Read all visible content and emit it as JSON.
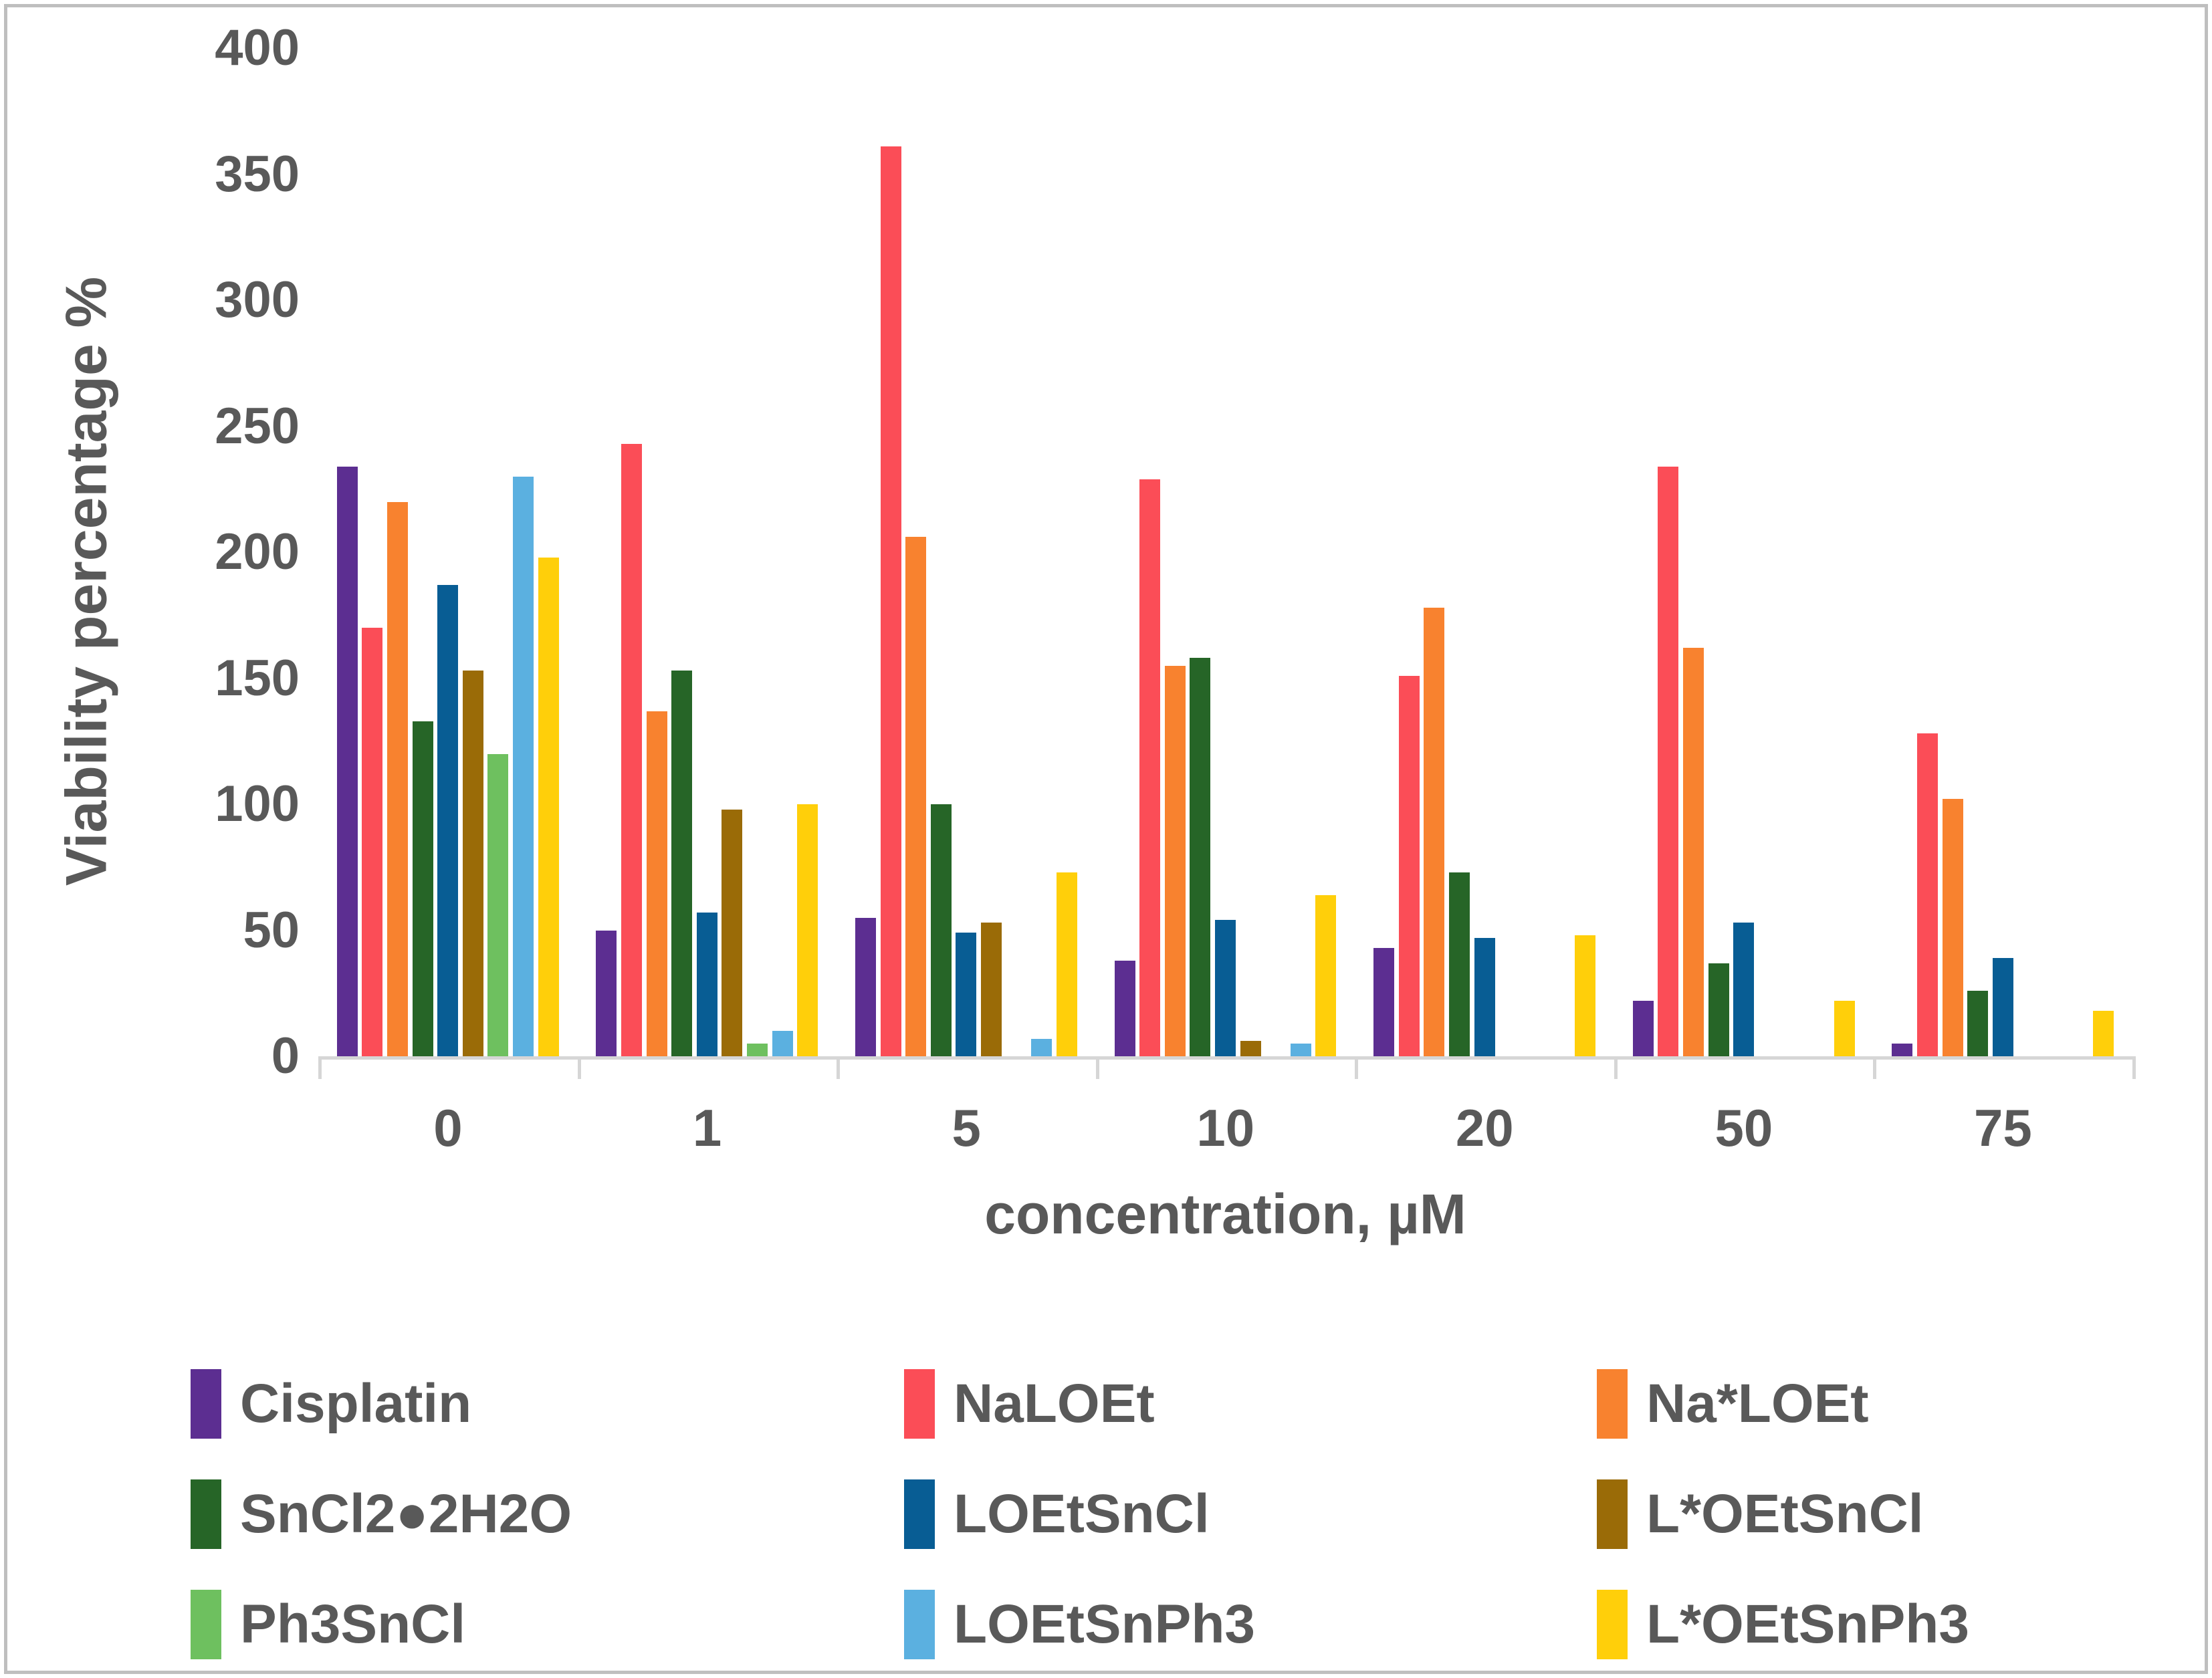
{
  "chart_data": {
    "type": "bar",
    "title": "",
    "xlabel": "concentration, µM",
    "ylabel": "Viability percentage  %",
    "categories": [
      "0",
      "1",
      "5",
      "10",
      "20",
      "50",
      "75"
    ],
    "ylim": [
      0,
      400
    ],
    "ytick_step": 50,
    "yticks": [
      "0",
      "50",
      "100",
      "150",
      "200",
      "250",
      "300",
      "350",
      "400"
    ],
    "grid": false,
    "legend_position": "bottom",
    "text_color": "#595959",
    "axis_line_color": "#d6d6d6",
    "series": [
      {
        "name": "Cisplatin",
        "color": "#5c2e91",
        "values": [
          234,
          50,
          55,
          38,
          43,
          22,
          5
        ]
      },
      {
        "name": "NaLOEt",
        "color": "#fb4d57",
        "values": [
          170,
          243,
          361,
          229,
          151,
          234,
          128
        ]
      },
      {
        "name": "Na*LOEt",
        "color": "#f8822f",
        "values": [
          220,
          137,
          206,
          155,
          178,
          162,
          102
        ]
      },
      {
        "name": "SnCl2●2H2O",
        "color": "#266527",
        "values": [
          133,
          153,
          100,
          158,
          73,
          37,
          26
        ]
      },
      {
        "name": "LOEtSnCl",
        "color": "#085d94",
        "values": [
          187,
          57,
          49,
          54,
          47,
          53,
          39
        ]
      },
      {
        "name": "L*OEtSnCl",
        "color": "#9a6b07",
        "values": [
          153,
          98,
          53,
          6,
          0,
          0,
          0
        ]
      },
      {
        "name": "Ph3SnCl",
        "color": "#6ec05f",
        "values": [
          120,
          5,
          0,
          0,
          0,
          0,
          0
        ]
      },
      {
        "name": "LOEtSnPh3",
        "color": "#5bb0e0",
        "values": [
          230,
          10,
          7,
          5,
          0,
          0,
          0
        ]
      },
      {
        "name": "L*OEtSnPh3",
        "color": "#ffcf0a",
        "values": [
          198,
          100,
          73,
          64,
          48,
          22,
          18
        ]
      }
    ]
  }
}
